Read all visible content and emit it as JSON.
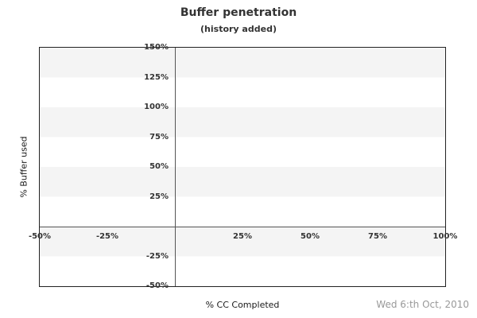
{
  "header": {
    "title": "Buffer penetration",
    "subtitle": "(history added)"
  },
  "footer": {
    "date": "Wed 6:th Oct, 2010"
  },
  "colors": {
    "stripe_gray": "#f4f4f4",
    "stripe_white": "#ffffff",
    "plot_border": "#222222",
    "zero_line": "#555555",
    "tick_text": "#333333",
    "title_text": "#333333",
    "axis_title_text": "#1a1a1a",
    "date_text": "#999999"
  },
  "chart_data": {
    "type": "line",
    "title": "Buffer penetration",
    "subtitle": "(history added)",
    "xlabel": "% CC Completed",
    "ylabel": "% Buffer used",
    "xlim": [
      -50,
      100
    ],
    "ylim": [
      -50,
      150
    ],
    "x_ticks": [
      {
        "value": -50,
        "label": "-50%"
      },
      {
        "value": -25,
        "label": "-25%"
      },
      {
        "value": 25,
        "label": "25%"
      },
      {
        "value": 50,
        "label": "50%"
      },
      {
        "value": 75,
        "label": "75%"
      },
      {
        "value": 100,
        "label": "100%"
      }
    ],
    "y_ticks": [
      {
        "value": 150,
        "label": "150%"
      },
      {
        "value": 125,
        "label": "125%"
      },
      {
        "value": 100,
        "label": "100%"
      },
      {
        "value": 75,
        "label": "75%"
      },
      {
        "value": 50,
        "label": "50%"
      },
      {
        "value": 25,
        "label": "25%"
      },
      {
        "value": -25,
        "label": "-25%"
      },
      {
        "value": -50,
        "label": "-50%"
      }
    ],
    "zero_lines": {
      "x": 0,
      "y": 0
    },
    "grid": "horizontal stripe bands every 25%, gray bands at 150-125, 100-75, 50-25, 0--25",
    "stripe_band_percent": 25,
    "legend": "none",
    "series": [],
    "annotation": "Wed 6:th Oct, 2010"
  }
}
